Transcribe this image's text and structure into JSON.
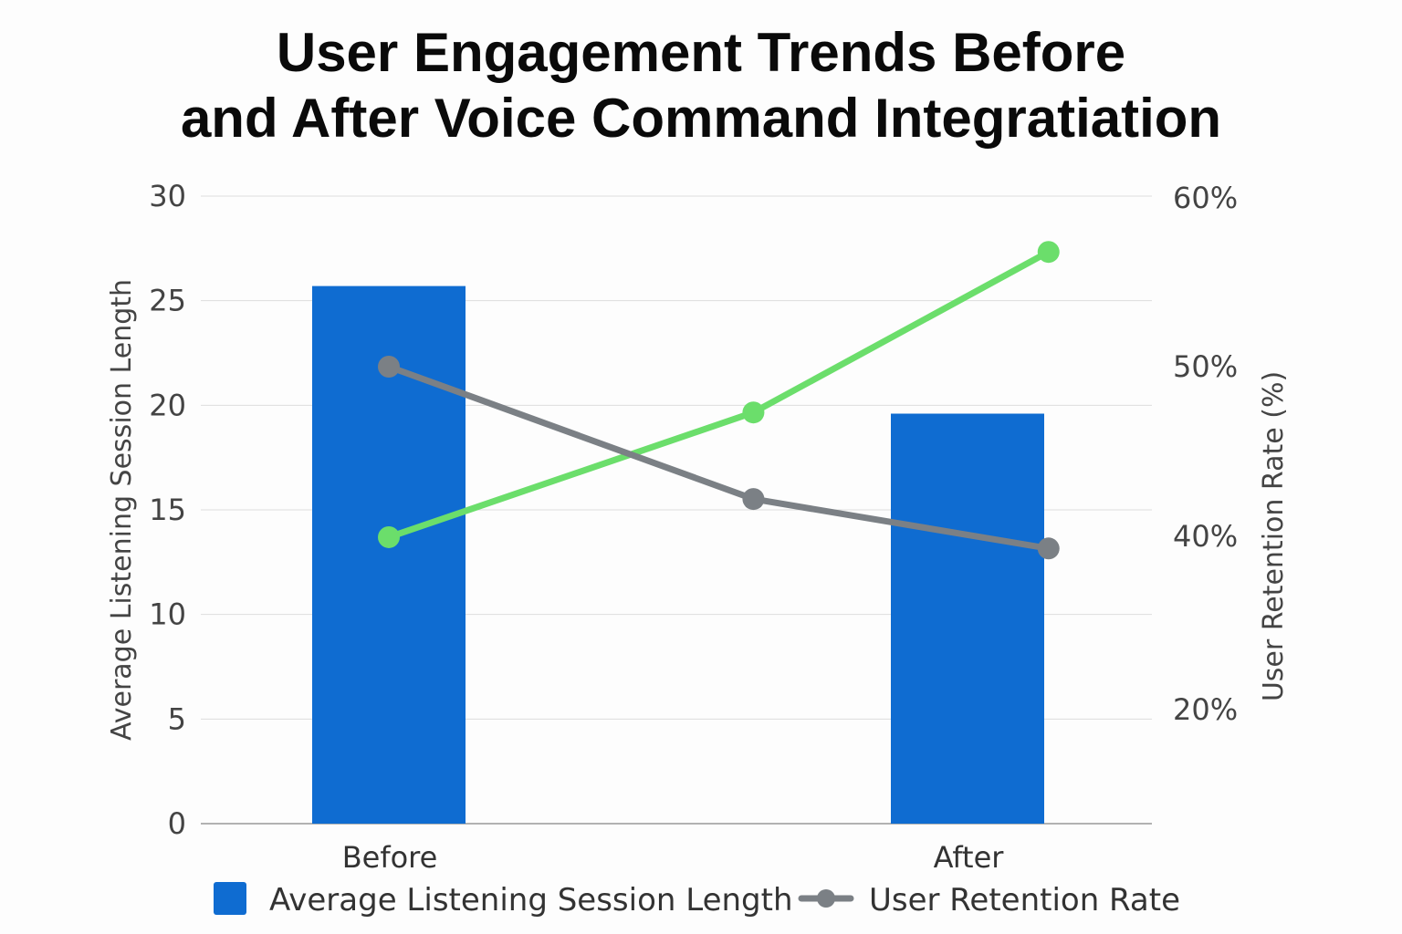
{
  "chart_data": {
    "type": "bar",
    "title": "User Engagement Trends Before\nand After Voice Command Integratiation",
    "categories": [
      "Before",
      "After"
    ],
    "ylabel": "Average Listening Session Length",
    "y2label": "User Retention Rate (%)",
    "ylim": [
      0,
      30
    ],
    "y_ticks": [
      0,
      5,
      10,
      15,
      20,
      25,
      30
    ],
    "y2_ticks": [
      {
        "value": 20,
        "label": "20%"
      },
      {
        "value": 40,
        "label": "40%"
      },
      {
        "value": 50,
        "label": "50%"
      },
      {
        "value": 60,
        "label": "60%"
      }
    ],
    "grid": true,
    "legend_position": "bottom",
    "bar_series": {
      "name": "Average Listening Session Length",
      "values": [
        25.7,
        19.6
      ],
      "color": "#0f6cd1"
    },
    "line_series": [
      {
        "name": "User Retention Rate",
        "x": [
          0,
          0.63,
          1.14
        ],
        "values": [
          50.0,
          42.2,
          38.6
        ],
        "color": "#7b8085",
        "in_legend": true
      },
      {
        "name": "",
        "x": [
          0,
          0.63,
          1.14
        ],
        "values": [
          39.9,
          47.3,
          56.8
        ],
        "color": "#6bde6b",
        "in_legend": false
      }
    ]
  }
}
